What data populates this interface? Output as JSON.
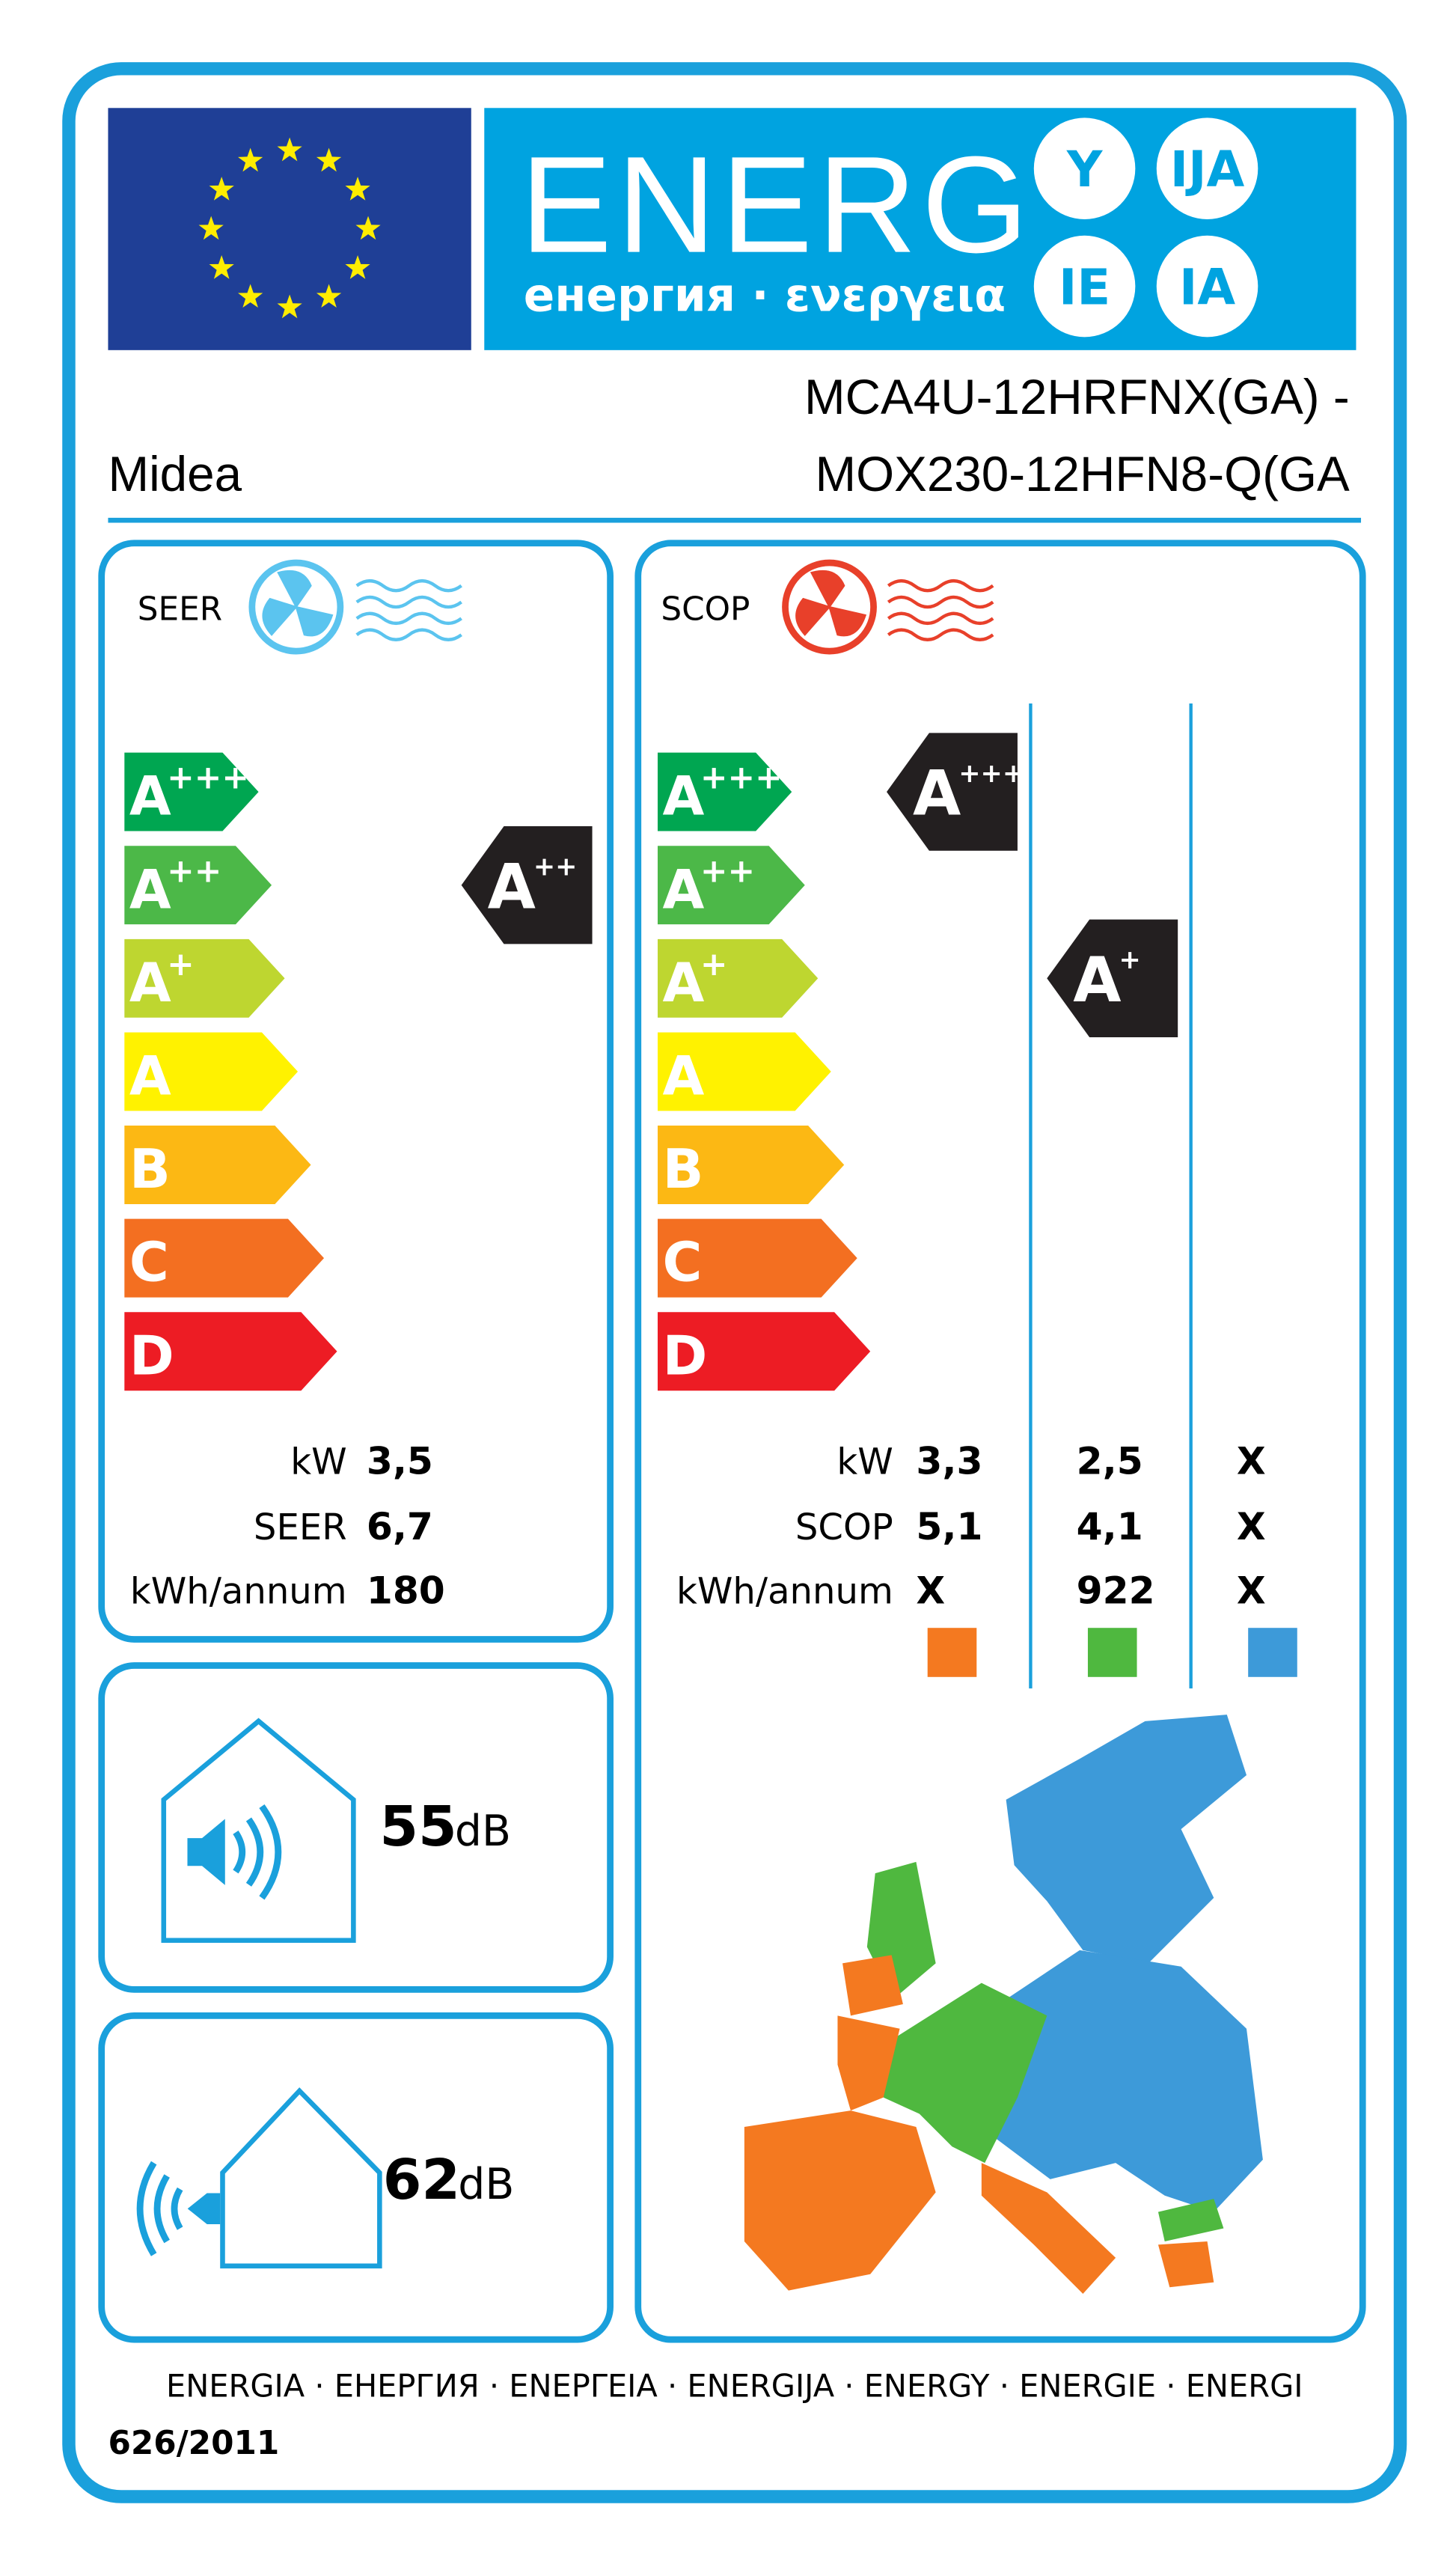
{
  "header": {
    "title": "ENERG",
    "subtitle": "енергия · ενεργεια",
    "suffixes": [
      "Y",
      "IJA",
      "IE",
      "IA"
    ]
  },
  "supplier": "Midea",
  "model": [
    "MCA4U-12HRFNX(GA) -",
    "MOX230-12HFN8-Q(GA"
  ],
  "classes": [
    {
      "letter": "A",
      "plus": "+++",
      "color": "#00a651"
    },
    {
      "letter": "A",
      "plus": "++",
      "color": "#4cb848"
    },
    {
      "letter": "A",
      "plus": "+",
      "color": "#bed630"
    },
    {
      "letter": "A",
      "color": "#fff200"
    },
    {
      "letter": "B",
      "color": "#fcb814"
    },
    {
      "letter": "C",
      "color": "#f36f21"
    },
    {
      "letter": "D",
      "color": "#ed1c24"
    }
  ],
  "cooling": {
    "label": "SEER",
    "rating": {
      "letter": "A",
      "plus": "++"
    },
    "rows": [
      {
        "label": "kW",
        "value": "3,5"
      },
      {
        "label": "SEER",
        "value": "6,7"
      },
      {
        "label": "kWh/annum",
        "value": "180"
      }
    ]
  },
  "heating": {
    "label": "SCOP",
    "ratings": [
      {
        "letter": "A",
        "plus": "+++"
      },
      {
        "letter": "A",
        "plus": "+"
      }
    ],
    "rows": [
      {
        "label": "kW",
        "values": [
          "3,3",
          "2,5",
          "X"
        ]
      },
      {
        "label": "SCOP",
        "values": [
          "5,1",
          "4,1",
          "X"
        ]
      },
      {
        "label": "kWh/annum",
        "values": [
          "X",
          "922",
          "X"
        ]
      }
    ],
    "zone_colors": [
      "#f47920",
      "#4fb83f",
      "#3d9ad9"
    ]
  },
  "noise": {
    "indoor": {
      "value": 55,
      "unit": "dB"
    },
    "outdoor": {
      "value": 62,
      "unit": "dB"
    }
  },
  "footer": {
    "languages": "ENERGIA · ЕНЕРГИЯ · ΕΝΕΡΓΕΙΑ · ENERGIJA · ENERGY · ENERGIE · ENERGI",
    "regulation": "626/2011"
  }
}
